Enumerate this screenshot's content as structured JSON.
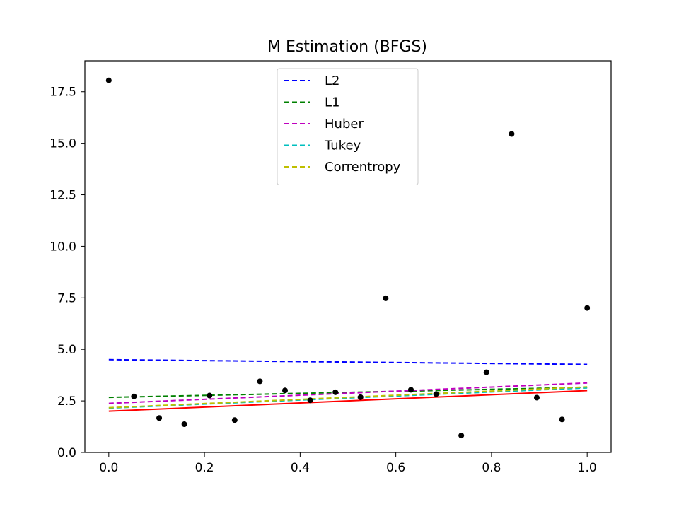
{
  "chart_data": {
    "type": "scatter",
    "title": "M Estimation (BFGS)",
    "xlabel": "",
    "ylabel": "",
    "xlim": [
      -0.05,
      1.05
    ],
    "ylim": [
      0,
      19.0
    ],
    "xticks": [
      0.0,
      0.2,
      0.4,
      0.6,
      0.8,
      1.0
    ],
    "xtick_labels": [
      "0.0",
      "0.2",
      "0.4",
      "0.6",
      "0.8",
      "1.0"
    ],
    "yticks": [
      0.0,
      2.5,
      5.0,
      7.5,
      10.0,
      12.5,
      15.0,
      17.5
    ],
    "ytick_labels": [
      "0.0",
      "2.5",
      "5.0",
      "7.5",
      "10.0",
      "12.5",
      "15.0",
      "17.5"
    ],
    "grid": false,
    "legend_position": "top-center",
    "points": {
      "color": "#000000",
      "x": [
        0.0,
        0.0526,
        0.1053,
        0.1579,
        0.2105,
        0.2632,
        0.3158,
        0.3684,
        0.4211,
        0.4737,
        0.5263,
        0.5789,
        0.6316,
        0.6842,
        0.7368,
        0.7895,
        0.8421,
        0.8947,
        0.9474,
        1.0
      ],
      "y": [
        18.05,
        2.72,
        1.67,
        1.37,
        2.76,
        1.57,
        3.45,
        3.01,
        2.53,
        2.92,
        2.68,
        7.48,
        3.04,
        2.83,
        0.82,
        3.89,
        15.45,
        2.66,
        1.6,
        7.01
      ]
    },
    "true_line": {
      "color": "#ff0000",
      "style": "solid",
      "x": [
        0.0,
        1.0
      ],
      "y": [
        2.0,
        3.0
      ]
    },
    "series": [
      {
        "name": "L2",
        "color": "#0000ff",
        "style": "dashed",
        "x": [
          0.0,
          1.0
        ],
        "y": [
          4.5,
          4.27
        ]
      },
      {
        "name": "L1",
        "color": "#008000",
        "style": "dashed",
        "x": [
          0.0,
          1.0
        ],
        "y": [
          2.67,
          3.16
        ]
      },
      {
        "name": "Huber",
        "color": "#bf00bf",
        "style": "dashed",
        "x": [
          0.0,
          1.0
        ],
        "y": [
          2.38,
          3.37
        ]
      },
      {
        "name": "Tukey",
        "color": "#00bfbf",
        "style": "dashed",
        "x": [
          0.0,
          1.0
        ],
        "y": [
          2.15,
          3.13
        ]
      },
      {
        "name": "Correntropy",
        "color": "#bfbf00",
        "style": "dashed",
        "x": [
          0.0,
          1.0
        ],
        "y": [
          2.17,
          3.18
        ]
      }
    ]
  }
}
